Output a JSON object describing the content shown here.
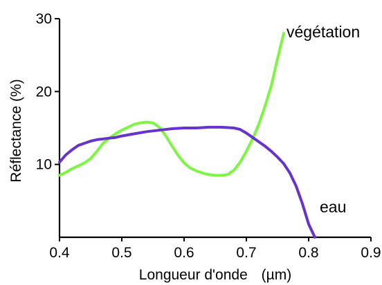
{
  "chart_data": {
    "type": "line",
    "xlabel": "Longueur d'onde",
    "xunit": "(µm)",
    "ylabel": "Réflectance (%)",
    "xlim": [
      0.4,
      0.9
    ],
    "ylim": [
      0,
      30
    ],
    "x_ticks": [
      0.4,
      0.5,
      0.6,
      0.7,
      0.8,
      0.9
    ],
    "x_tick_labels": [
      "0.4",
      "0.5",
      "0.6",
      "0.7",
      "0.8",
      "0.9"
    ],
    "y_ticks": [
      10,
      20,
      30
    ],
    "y_tick_labels": [
      "10",
      "20",
      "30"
    ],
    "grid": false,
    "series": [
      {
        "name": "végétation",
        "color": "#7df542",
        "points": [
          [
            0.4,
            8.5
          ],
          [
            0.41,
            8.9
          ],
          [
            0.42,
            9.4
          ],
          [
            0.43,
            9.8
          ],
          [
            0.44,
            10.2
          ],
          [
            0.45,
            10.8
          ],
          [
            0.46,
            11.8
          ],
          [
            0.47,
            12.9
          ],
          [
            0.48,
            13.6
          ],
          [
            0.49,
            14.2
          ],
          [
            0.5,
            14.7
          ],
          [
            0.51,
            15.1
          ],
          [
            0.52,
            15.5
          ],
          [
            0.53,
            15.7
          ],
          [
            0.54,
            15.8
          ],
          [
            0.55,
            15.7
          ],
          [
            0.56,
            15.1
          ],
          [
            0.57,
            14.0
          ],
          [
            0.58,
            12.6
          ],
          [
            0.59,
            11.3
          ],
          [
            0.6,
            10.2
          ],
          [
            0.61,
            9.5
          ],
          [
            0.62,
            9.1
          ],
          [
            0.63,
            8.8
          ],
          [
            0.64,
            8.6
          ],
          [
            0.65,
            8.5
          ],
          [
            0.66,
            8.5
          ],
          [
            0.67,
            8.6
          ],
          [
            0.68,
            9.2
          ],
          [
            0.69,
            10.3
          ],
          [
            0.7,
            11.8
          ],
          [
            0.71,
            13.5
          ],
          [
            0.72,
            15.5
          ],
          [
            0.73,
            18.0
          ],
          [
            0.74,
            20.8
          ],
          [
            0.75,
            24.5
          ],
          [
            0.76,
            28.0
          ]
        ]
      },
      {
        "name": "eau",
        "color": "#6633cc",
        "points": [
          [
            0.4,
            10.3
          ],
          [
            0.41,
            11.3
          ],
          [
            0.42,
            12.0
          ],
          [
            0.43,
            12.6
          ],
          [
            0.44,
            12.9
          ],
          [
            0.45,
            13.2
          ],
          [
            0.46,
            13.4
          ],
          [
            0.47,
            13.5
          ],
          [
            0.48,
            13.6
          ],
          [
            0.49,
            13.7
          ],
          [
            0.5,
            13.9
          ],
          [
            0.52,
            14.2
          ],
          [
            0.54,
            14.5
          ],
          [
            0.56,
            14.7
          ],
          [
            0.58,
            14.9
          ],
          [
            0.6,
            15.0
          ],
          [
            0.62,
            15.0
          ],
          [
            0.64,
            15.1
          ],
          [
            0.66,
            15.1
          ],
          [
            0.68,
            15.0
          ],
          [
            0.69,
            14.8
          ],
          [
            0.7,
            14.3
          ],
          [
            0.71,
            13.7
          ],
          [
            0.72,
            13.1
          ],
          [
            0.73,
            12.5
          ],
          [
            0.74,
            11.8
          ],
          [
            0.75,
            11.0
          ],
          [
            0.76,
            10.1
          ],
          [
            0.77,
            8.8
          ],
          [
            0.78,
            7.0
          ],
          [
            0.79,
            4.6
          ],
          [
            0.8,
            1.8
          ],
          [
            0.81,
            0.0
          ]
        ]
      }
    ]
  }
}
